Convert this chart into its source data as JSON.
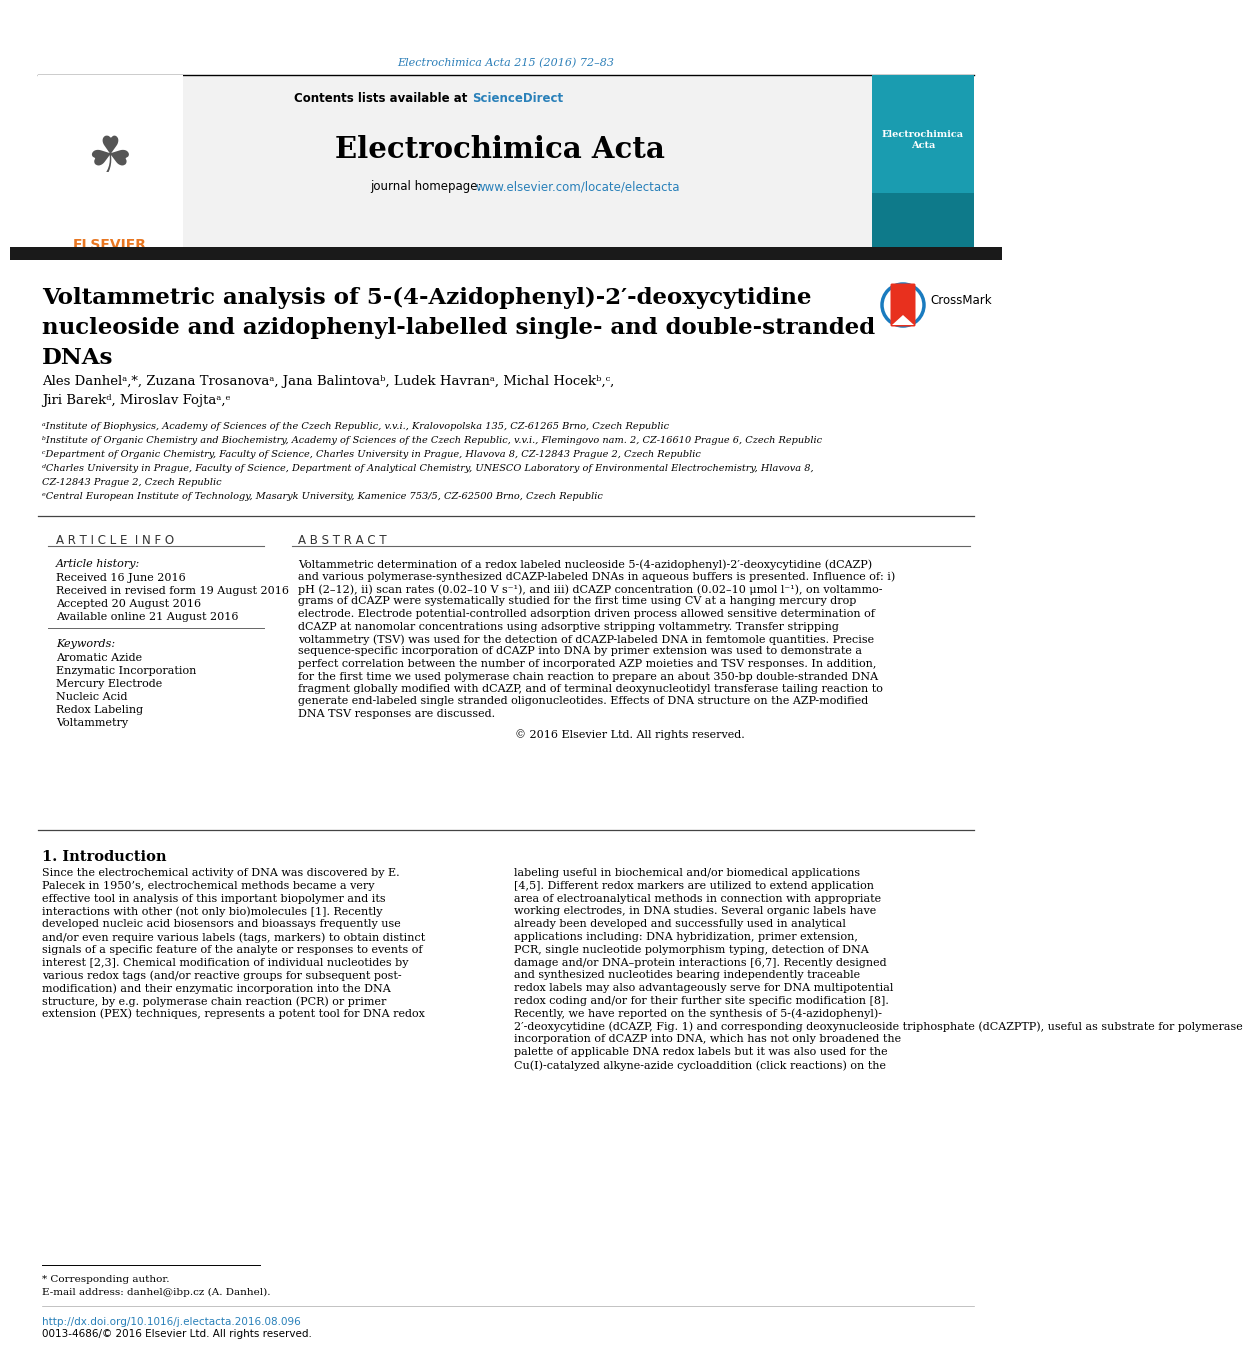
{
  "journal_ref": "Electrochimica Acta 215 (2016) 72–83",
  "journal_name": "Electrochimica Acta",
  "contents_available": "Contents lists available at ",
  "sciencedirect": "ScienceDirect",
  "journal_homepage_label": "journal homepage: ",
  "journal_homepage_url": "www.elsevier.com/locate/electacta",
  "title_line1": "Voltammetric analysis of 5-(4-Azidophenyl)-2′-deoxycytidine",
  "title_line2": "nucleoside and azidophenyl-labelled single- and double-stranded",
  "title_line3": "DNAs",
  "authors": "Ales Danhelᵃ,*, Zuzana Trosanovaᵃ, Jana Balintovaᵇ, Ludek Havranᵃ, Michal Hocekᵇ,ᶜ,",
  "authors2": "Jiri Barekᵈ, Miroslav Fojtaᵃ,ᵉ",
  "affil_a": "ᵃInstitute of Biophysics, Academy of Sciences of the Czech Republic, v.v.i., Kralovopolska 135, CZ-61265 Brno, Czech Republic",
  "affil_b": "ᵇInstitute of Organic Chemistry and Biochemistry, Academy of Sciences of the Czech Republic, v.v.i., Flemingovo nam. 2, CZ-16610 Prague 6, Czech Republic",
  "affil_c": "ᶜDepartment of Organic Chemistry, Faculty of Science, Charles University in Prague, Hlavova 8, CZ-12843 Prague 2, Czech Republic",
  "affil_d1": "ᵈCharles University in Prague, Faculty of Science, Department of Analytical Chemistry, UNESCO Laboratory of Environmental Electrochemistry, Hlavova 8,",
  "affil_d2": "CZ-12843 Prague 2, Czech Republic",
  "affil_e": "ᵉCentral European Institute of Technology, Masaryk University, Kamenice 753/5, CZ-62500 Brno, Czech Republic",
  "article_info_label": "A R T I C L E  I N F O",
  "abstract_label": "A B S T R A C T",
  "article_history_label": "Article history:",
  "received": "Received 16 June 2016",
  "received_revised": "Received in revised form 19 August 2016",
  "accepted": "Accepted 20 August 2016",
  "available": "Available online 21 August 2016",
  "keywords_label": "Keywords:",
  "keyword1": "Aromatic Azide",
  "keyword2": "Enzymatic Incorporation",
  "keyword3": "Mercury Electrode",
  "keyword4": "Nucleic Acid",
  "keyword5": "Redox Labeling",
  "keyword6": "Voltammetry",
  "abstract_p1": "Voltammetric determination of a redox labeled nucleoside 5-(4-azidophenyl)-2′-deoxycytidine (dCAZP) and various polymerase-synthesized dCAZP-labeled DNAs in aqueous buffers is presented. Influence of: i) pH (2–12), ii) scan rates (0.02–10 V s⁻¹), and iii) dCAZP concentration (0.02–10 μmol l⁻¹), on voltammograms of dCAZP were systematically studied for the first time using CV at a hanging mercury drop electrode. Electrode potential-controlled adsorption driven process allowed sensitive determination of dCAZP at nanomolar concentrations using adsorptive stripping voltammetry. Transfer stripping voltammetry (TSV) was used for the detection of dCAZP-labeled DNA in femtomole quantities. Precise sequence-specific incorporation of dCAZP into DNA by primer extension was used to demonstrate a perfect correlation between the number of incorporated AZP moieties and TSV responses. In addition, for the first time we used polymerase chain reaction to prepare an about 350-bp double-stranded DNA fragment globally modified with dCAZP, and of terminal deoxynucleotidyl transferase tailing reaction to generate end-labeled single stranded oligonucleotides. Effects of DNA structure on the AZP-modified DNA TSV responses are discussed.",
  "copyright": "© 2016 Elsevier Ltd. All rights reserved.",
  "intro_heading": "1. Introduction",
  "intro_col1": "Since the electrochemical activity of DNA was discovered by E.\nPalecek in 1950’s, electrochemical methods became a very\neffective tool in analysis of this important biopolymer and its\ninteractions with other (not only bio)molecules [1]. Recently\ndeveloped nucleic acid biosensors and bioassays frequently use\nand/or even require various labels (tags, markers) to obtain distinct\nsignals of a specific feature of the analyte or responses to events of\ninterest [2,3]. Chemical modification of individual nucleotides by\nvarious redox tags (and/or reactive groups for subsequent post-\nmodification) and their enzymatic incorporation into the DNA\nstructure, by e.g. polymerase chain reaction (PCR) or primer\nextension (PEX) techniques, represents a potent tool for DNA redox",
  "intro_col2": "labeling useful in biochemical and/or biomedical applications\n[4,5]. Different redox markers are utilized to extend application\narea of electroanalytical methods in connection with appropriate\nworking electrodes, in DNA studies. Several organic labels have\nalready been developed and successfully used in analytical\napplications including: DNA hybridization, primer extension,\nPCR, single nucleotide polymorphism typing, detection of DNA\ndamage and/or DNA–protein interactions [6,7]. Recently designed\nand synthesized nucleotides bearing independently traceable\nredox labels may also advantageously serve for DNA multipotential\nredox coding and/or for their further site specific modification [8].\nRecently, we have reported on the synthesis of 5-(4-azidophenyl)-\n2′-deoxycytidine (dCAZP, Fig. 1) and corresponding deoxynucleoside triphosphate (dCAZPTP), useful as substrate for polymerase\nincorporation of dCAZP into DNA, which has not only broadened the\npalette of applicable DNA redox labels but it was also used for the\nCu(I)-catalyzed alkyne-azide cycloaddition (click reactions) on the",
  "corresponding_author_note": "* Corresponding author.",
  "email_note": "E-mail address: danhel@ibp.cz (A. Danhel).",
  "doi_text": "http://dx.doi.org/10.1016/j.electacta.2016.08.096",
  "issn_text": "0013-4686/© 2016 Elsevier Ltd. All rights reserved.",
  "bg_color": "#ffffff",
  "blue_color": "#2c7fb8",
  "link_color": "#2980b9",
  "dark_gray": "#333333",
  "elsevier_orange": "#e87722",
  "crossmark_blue": "#1a7bbf",
  "crossmark_red": "#e8301e",
  "teal_cover": "#1a9cb0",
  "teal_cover_dark": "#0e7a8a"
}
